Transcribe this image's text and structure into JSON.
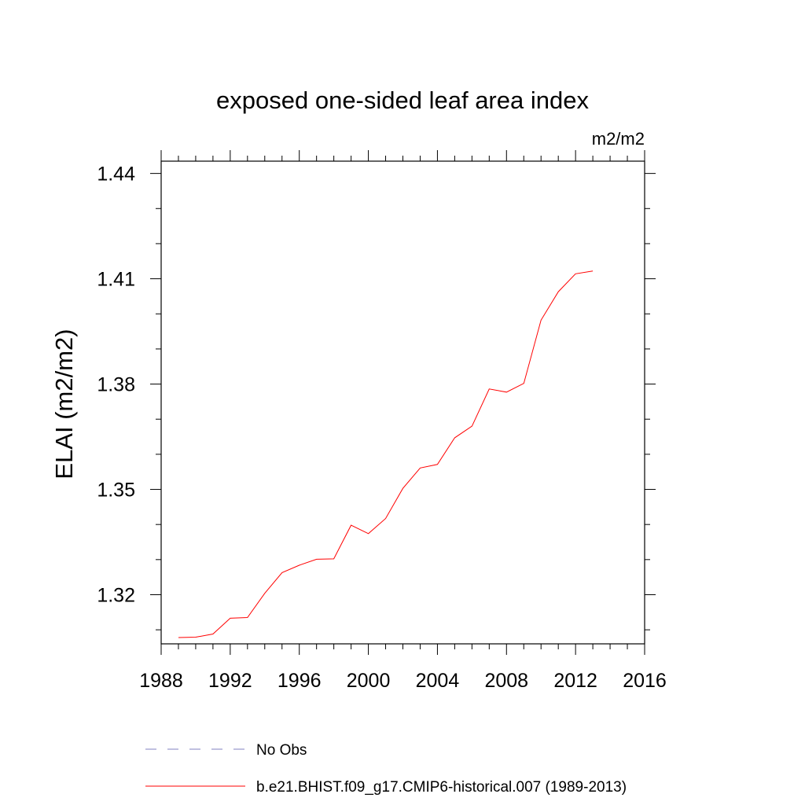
{
  "chart_data": {
    "type": "line",
    "title": "exposed one-sided leaf area index",
    "units_label": "m2/m2",
    "ylabel": "ELAI  (m2/m2)",
    "xlabel": "",
    "xlim": [
      1988,
      2016
    ],
    "ylim": [
      1.306,
      1.4435
    ],
    "xticks": [
      1988,
      1992,
      1996,
      2000,
      2004,
      2008,
      2012,
      2016
    ],
    "yticks": [
      1.32,
      1.35,
      1.38,
      1.41,
      1.44
    ],
    "ytick_labels": [
      "1.32",
      "1.35",
      "1.38",
      "1.41",
      "1.44"
    ],
    "grid": false,
    "legend_position": "bottom",
    "series": [
      {
        "name": "No Obs",
        "style": "dashed",
        "color": "#8080c0",
        "x": [],
        "y": []
      },
      {
        "name": "b.e21.BHIST.f09_g17.CMIP6-historical.007 (1989-2013)",
        "style": "solid",
        "color": "#ff0000",
        "x": [
          1989,
          1990,
          1991,
          1992,
          1993,
          1994,
          1995,
          1996,
          1997,
          1998,
          1999,
          2000,
          2001,
          2002,
          2003,
          2004,
          2005,
          2006,
          2007,
          2008,
          2009,
          2010,
          2011,
          2012,
          2013
        ],
        "y": [
          1.3078,
          1.3079,
          1.3088,
          1.3133,
          1.3135,
          1.3204,
          1.3263,
          1.3284,
          1.3301,
          1.3302,
          1.3398,
          1.3374,
          1.3417,
          1.3503,
          1.3561,
          1.3571,
          1.3647,
          1.368,
          1.3786,
          1.3777,
          1.3802,
          1.3982,
          1.4063,
          1.4114,
          1.4122
        ]
      }
    ]
  }
}
